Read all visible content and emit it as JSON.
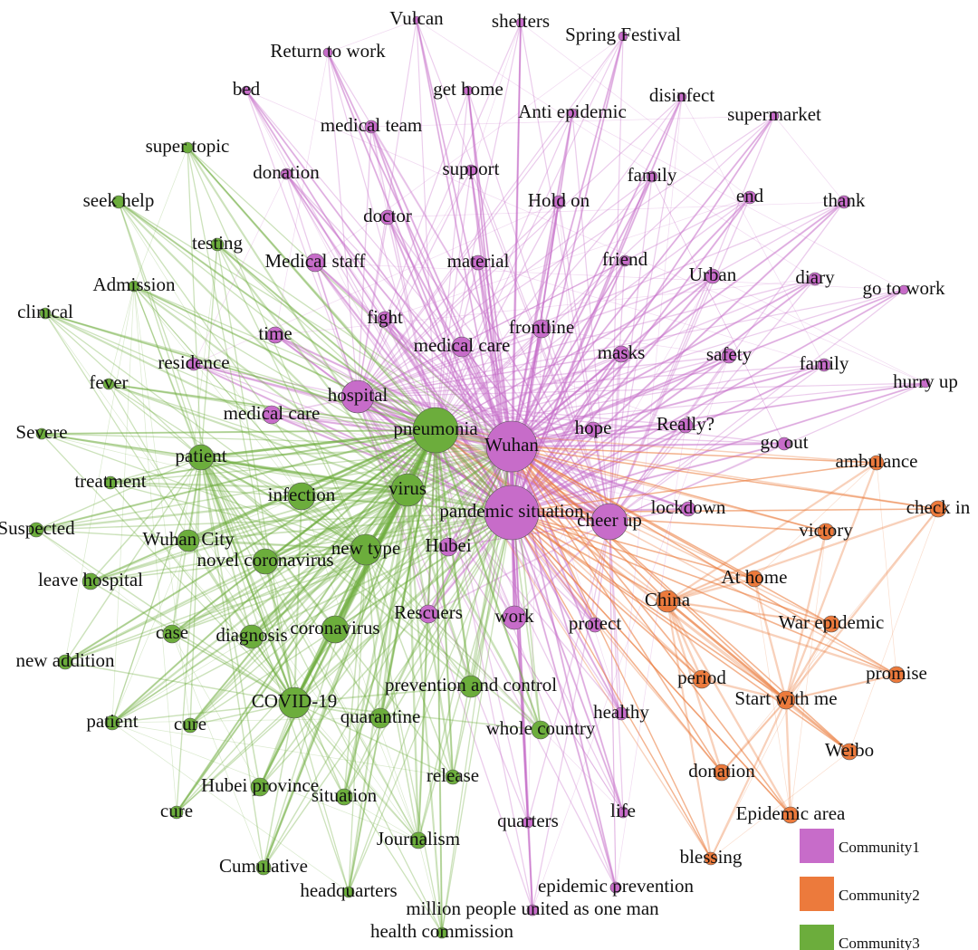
{
  "communities": [
    {
      "name": "Community1",
      "color": "#c76cc9",
      "nodes": [
        "Vulcan",
        "shelters",
        "Spring Festival",
        "Return to work",
        "bed",
        "get home",
        "disinfect",
        "Anti epidemic",
        "supermarket",
        "medical team",
        "support",
        "donation",
        "family",
        "Hold on",
        "end",
        "thank",
        "doctor",
        "Medical staff",
        "material",
        "friend",
        "Urban",
        "diary",
        "go to work",
        "fight",
        "time",
        "frontline",
        "medical care",
        "masks",
        "safety",
        "family",
        "residence",
        "hurry up",
        "hospital",
        "medical care",
        "hope",
        "Really?",
        "Wuhan",
        "go out",
        "pandemic situation",
        "cheer up",
        "lockdown",
        "Hubei",
        "Rescuers",
        "work",
        "protect",
        "healthy",
        "quarters",
        "life",
        "epidemic prevention",
        "million people united as one man"
      ]
    },
    {
      "name": "Community2",
      "color": "#ec7a3c",
      "nodes": [
        "ambulance",
        "check in",
        "victory",
        "At home",
        "China",
        "War epidemic",
        "period",
        "promise",
        "Start with me",
        "Weibo",
        "donation",
        "Epidemic area",
        "blessing"
      ]
    },
    {
      "name": "Community3",
      "color": "#6cad3c",
      "nodes": [
        "super topic",
        "seek help",
        "testing",
        "Admission",
        "clinical",
        "fever",
        "Severe",
        "pneumonia",
        "patient",
        "treatment",
        "infection",
        "virus",
        "Suspected",
        "Wuhan City",
        "novel coronavirus",
        "new type",
        "leave hospital",
        "case",
        "diagnosis",
        "coronavirus",
        "new addition",
        "prevention and control",
        "COVID-19",
        "quarantine",
        "patient",
        "cure",
        "whole country",
        "Hubei province",
        "release",
        "situation",
        "cure",
        "Journalism",
        "Cumulative",
        "headquarters",
        "health commission"
      ]
    }
  ]
}
